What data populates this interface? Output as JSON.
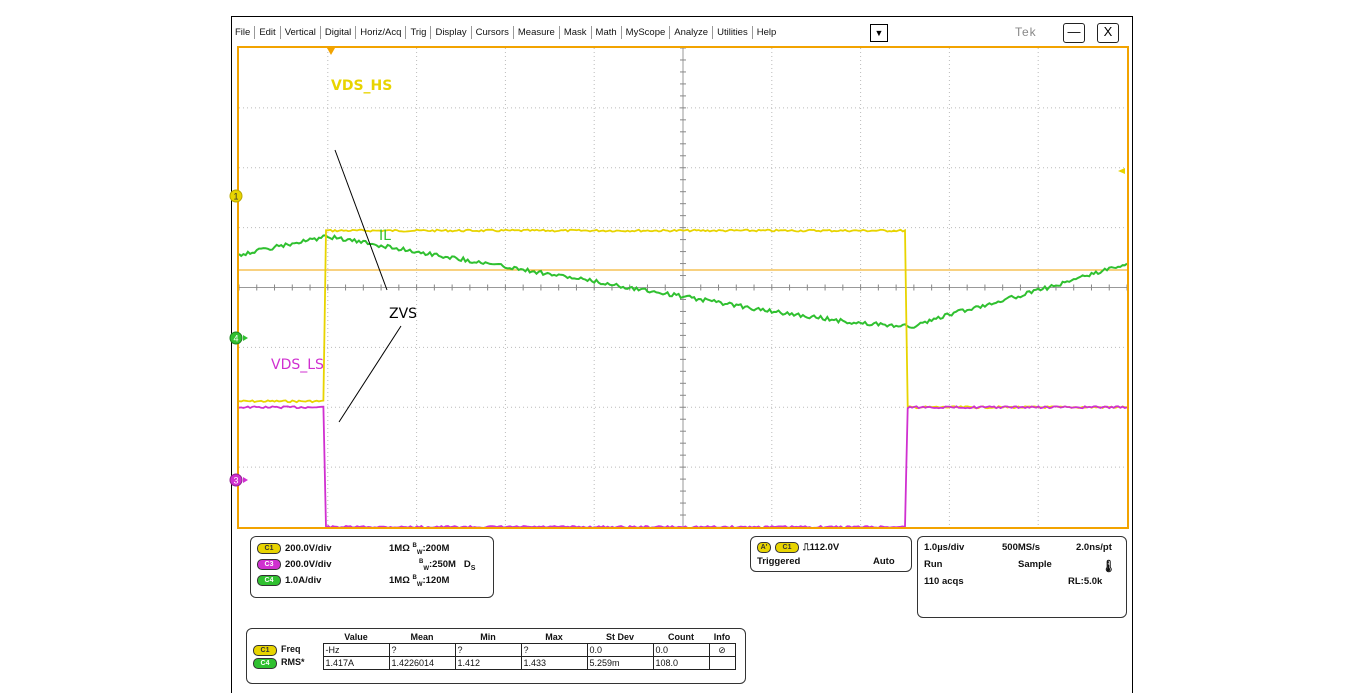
{
  "menu": {
    "items": [
      "File",
      "Edit",
      "Vertical",
      "Digital",
      "Horiz/Acq",
      "Trig",
      "Display",
      "Cursors",
      "Measure",
      "Mask",
      "Math",
      "MyScope",
      "Analyze",
      "Utilities",
      "Help"
    ],
    "dropdown_glyph": "▼"
  },
  "brand": "Tek",
  "window": {
    "minimize_glyph": "—",
    "close_glyph": "X"
  },
  "colors": {
    "ch1": "#e8d400",
    "ch3": "#d030d0",
    "ch4": "#30c030",
    "graticule_border": "#f2a300",
    "trigger_level": "#f2a300"
  },
  "display": {
    "trace_labels": {
      "vds_hs": "VDS_HS",
      "il": "IL",
      "zvs": "ZVS",
      "vds_ls": "VDS_LS"
    },
    "markers": {
      "ch1": "1",
      "ch4": "4",
      "ch3": "3"
    },
    "traces": {
      "vds_hs": {
        "times_div": [
          0,
          0.95,
          0.98,
          7.5,
          7.53,
          10
        ],
        "levels_div": [
          -1.9,
          -1.9,
          0.95,
          0.95,
          -2.0,
          -2.0
        ]
      },
      "vds_ls": {
        "times_div": [
          0,
          0.95,
          0.98,
          7.5,
          7.53,
          10
        ],
        "levels_div": [
          -2.0,
          -2.0,
          -4.0,
          -4.0,
          -2.0,
          -2.0
        ]
      },
      "il": {
        "times_div": [
          0,
          1,
          2,
          3,
          4,
          5,
          6,
          7,
          7.6,
          8,
          9,
          10
        ],
        "levels_div": [
          0.55,
          0.85,
          0.6,
          0.35,
          0.1,
          -0.15,
          -0.4,
          -0.6,
          -0.65,
          -0.45,
          -0.05,
          0.4
        ]
      }
    }
  },
  "channels": {
    "ch1": {
      "badge": "C1",
      "scale": "200.0V/div",
      "impedance": "1MΩ",
      "bw": "B",
      "bw_sub": "W",
      "bw_val": ":200M"
    },
    "ch3": {
      "badge": "C3",
      "scale": "200.0V/div",
      "bw": "B",
      "bw_sub": "W",
      "bw_val": ":250M",
      "ds": "D",
      "ds_sub": "S"
    },
    "ch4": {
      "badge": "C4",
      "scale": "1.0A/div",
      "impedance": "1MΩ",
      "bw": "B",
      "bw_sub": "W",
      "bw_val": ":120M"
    }
  },
  "trigger": {
    "tag": "A'",
    "badge": "C1",
    "slope_glyph": "⎍",
    "level": "112.0V",
    "status": "Triggered",
    "mode": "Auto"
  },
  "horizontal": {
    "scale": "1.0µs/div",
    "rate": "500MS/s",
    "resolution": "2.0ns/pt",
    "run": "Run",
    "sample": "Sample",
    "acqs": "110 acqs",
    "record": "RL:5.0k"
  },
  "measurements": {
    "headers": [
      "Value",
      "Mean",
      "Min",
      "Max",
      "St Dev",
      "Count",
      "Info"
    ],
    "rows": [
      {
        "badge": "C1",
        "name": "Freq",
        "cells": [
          "-Hz",
          "?",
          "?",
          "?",
          "0.0",
          "0.0"
        ]
      },
      {
        "badge": "C4",
        "name": "RMS*",
        "cells": [
          "1.417A",
          "1.4226014",
          "1.412",
          "1.433",
          "5.259m",
          "108.0"
        ]
      }
    ]
  }
}
